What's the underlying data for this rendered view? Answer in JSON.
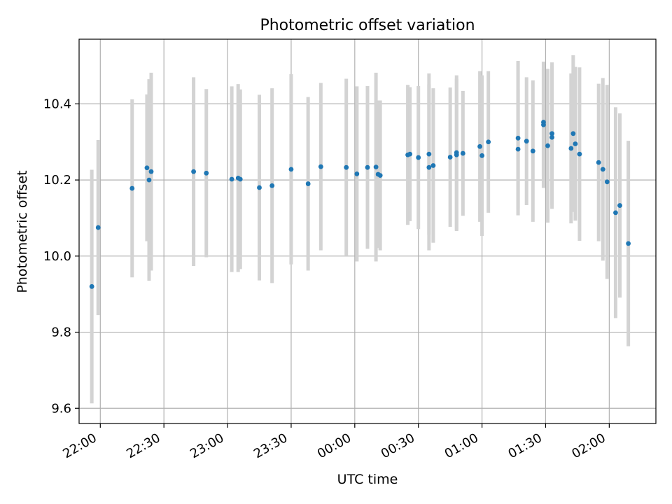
{
  "chart_data": {
    "type": "scatter",
    "title": "Photometric offset variation",
    "xlabel": "UTC time",
    "ylabel": "Photometric offset",
    "xlim": [
      "21:50",
      "02:22"
    ],
    "ylim": [
      9.56,
      10.57
    ],
    "xticks": [
      "22:00",
      "22:30",
      "23:00",
      "23:30",
      "00:00",
      "00:30",
      "01:00",
      "01:30",
      "02:00"
    ],
    "yticks": [
      "9.6",
      "9.8",
      "10.0",
      "10.2",
      "10.4"
    ],
    "grid": true,
    "marker_color": "#1f77b4",
    "errorbar_color": "#d3d3d3",
    "series": [
      {
        "x": [
          "21:56",
          "21:59",
          "22:15",
          "22:22",
          "22:23",
          "22:24",
          "22:44",
          "22:50",
          "23:02",
          "23:05",
          "23:06",
          "23:15",
          "23:21",
          "23:30",
          "23:38",
          "23:44",
          "23:56",
          "00:01",
          "00:06",
          "00:10",
          "00:11",
          "00:12",
          "00:25",
          "00:26",
          "00:30",
          "00:35",
          "00:35",
          "00:37",
          "00:45",
          "00:48",
          "00:48",
          "00:51",
          "00:59",
          "01:00",
          "01:03",
          "01:17",
          "01:17",
          "01:21",
          "01:24",
          "01:29",
          "01:29",
          "01:31",
          "01:33",
          "01:33",
          "01:42",
          "01:43",
          "01:44",
          "01:46",
          "01:55",
          "01:57",
          "01:59",
          "02:03",
          "02:05",
          "02:09"
        ],
        "y": [
          9.92,
          10.075,
          10.178,
          10.232,
          10.2,
          10.222,
          10.222,
          10.218,
          10.202,
          10.205,
          10.202,
          10.18,
          10.185,
          10.228,
          10.19,
          10.235,
          10.233,
          10.216,
          10.233,
          10.234,
          10.215,
          10.212,
          10.266,
          10.268,
          10.259,
          10.268,
          10.233,
          10.238,
          10.26,
          10.266,
          10.272,
          10.27,
          10.288,
          10.264,
          10.3,
          10.281,
          10.31,
          10.302,
          10.276,
          10.352,
          10.345,
          10.29,
          10.312,
          10.322,
          10.283,
          10.322,
          10.295,
          10.268,
          10.246,
          10.228,
          10.195,
          10.114,
          10.133,
          10.033
        ],
        "err": [
          0.307,
          0.23,
          0.234,
          0.193,
          0.265,
          0.26,
          0.248,
          0.221,
          0.244,
          0.247,
          0.236,
          0.244,
          0.256,
          0.25,
          0.228,
          0.22,
          0.233,
          0.23,
          0.214,
          0.248,
          0.194,
          0.197,
          0.184,
          0.176,
          0.188,
          0.212,
          0.218,
          0.203,
          0.183,
          0.2,
          0.203,
          0.164,
          0.198,
          0.211,
          0.186,
          0.157,
          0.203,
          0.168,
          0.186,
          0.142,
          0.166,
          0.202,
          0.188,
          0.187,
          0.197,
          0.206,
          0.202,
          0.228,
          0.207,
          0.24,
          0.255,
          0.277,
          0.242,
          0.27
        ]
      }
    ]
  }
}
